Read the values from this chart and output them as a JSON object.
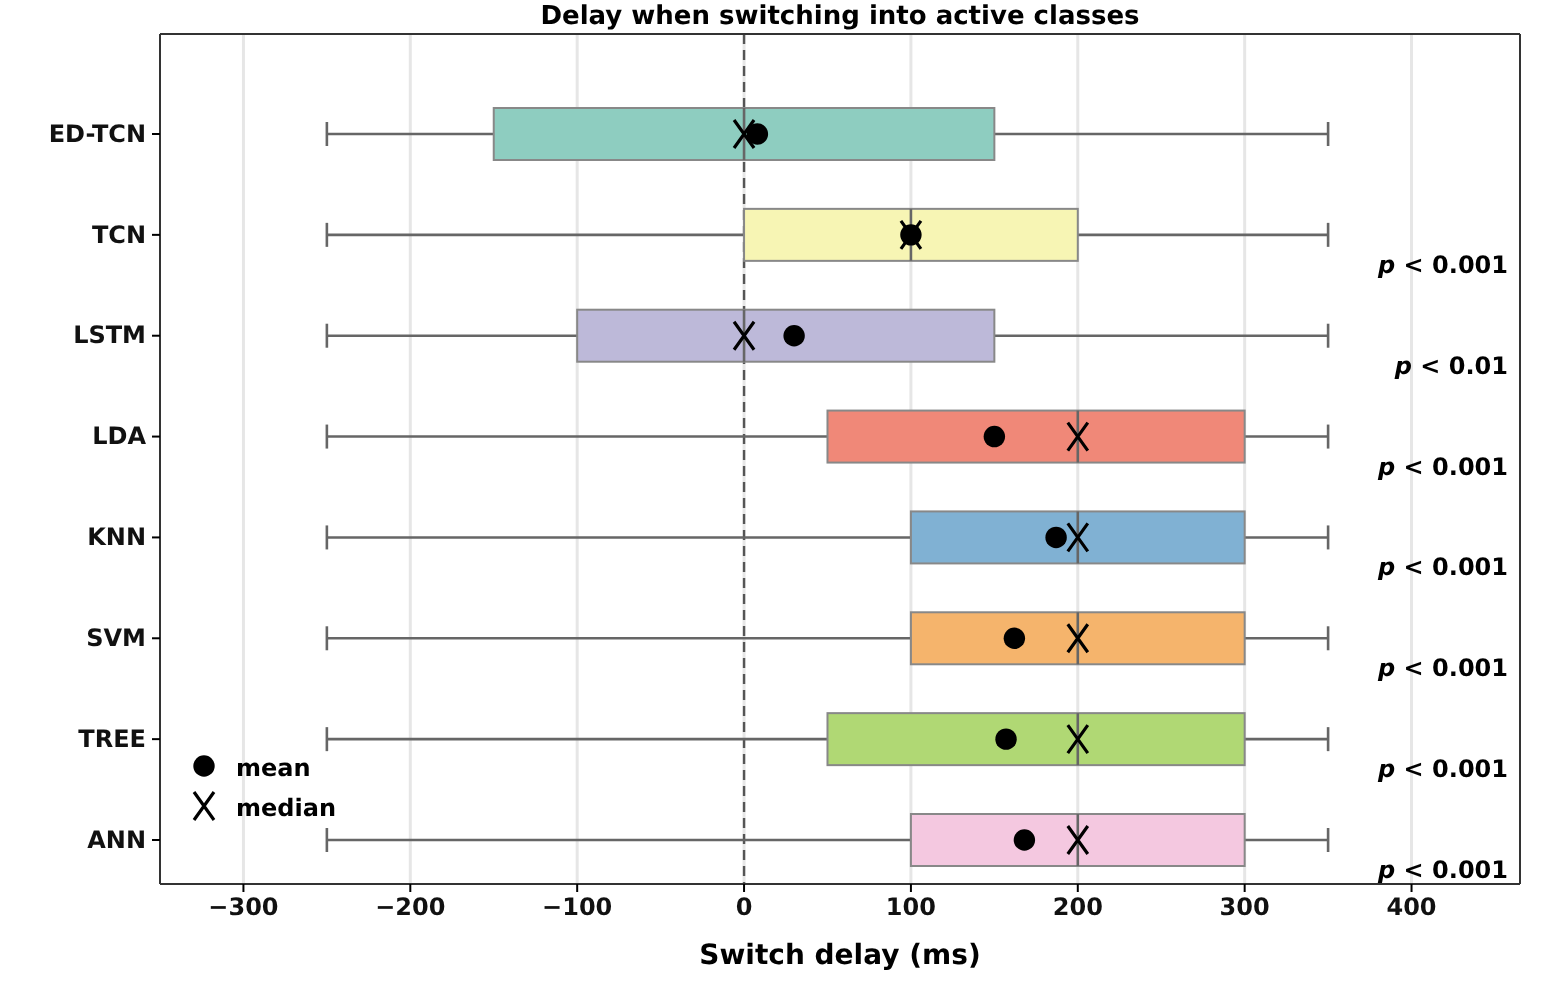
{
  "chart_data": {
    "type": "box",
    "orientation": "horizontal",
    "title": "Delay when switching into active classes",
    "xlabel": "Switch delay (ms)",
    "categories": [
      "ED-TCN",
      "TCN",
      "LSTM",
      "LDA",
      "KNN",
      "SVM",
      "TREE",
      "ANN"
    ],
    "colors": [
      "#8ecdc0",
      "#f7f5b4",
      "#bdb9d9",
      "#f08878",
      "#80b1d3",
      "#f5b46c",
      "#b0d874",
      "#f4c8e0"
    ],
    "boxes": [
      {
        "low": -250,
        "q1": -150,
        "median": 0,
        "q3": 150,
        "high": 350
      },
      {
        "low": -250,
        "q1": 0,
        "median": 100,
        "q3": 200,
        "high": 350
      },
      {
        "low": -250,
        "q1": -100,
        "median": 0,
        "q3": 150,
        "high": 350
      },
      {
        "low": -250,
        "q1": 50,
        "median": 200,
        "q3": 300,
        "high": 350
      },
      {
        "low": -250,
        "q1": 100,
        "median": 200,
        "q3": 300,
        "high": 350
      },
      {
        "low": -250,
        "q1": 100,
        "median": 200,
        "q3": 300,
        "high": 350
      },
      {
        "low": -250,
        "q1": 50,
        "median": 200,
        "q3": 300,
        "high": 350
      },
      {
        "low": -250,
        "q1": 100,
        "median": 200,
        "q3": 300,
        "high": 350
      }
    ],
    "series": [
      {
        "name": "mean",
        "type": "scatter",
        "marker": "circle",
        "color": "#000000",
        "values": [
          8,
          100,
          30,
          150,
          187,
          162,
          157,
          168
        ]
      },
      {
        "name": "median",
        "type": "scatter",
        "marker": "cross",
        "color": "#000000",
        "values": [
          0,
          100,
          0,
          200,
          200,
          200,
          200,
          200
        ]
      }
    ],
    "xlim": [
      -350,
      465
    ],
    "xticks": [
      -300,
      -200,
      -100,
      0,
      100,
      200,
      300,
      400
    ],
    "grid": "x",
    "legend": "bottom left",
    "ref_lines": [
      {
        "axis": "x",
        "value": 0,
        "line_style": "dashed",
        "color": "#555555"
      }
    ],
    "annotations": [
      "p < 0.001",
      "p < 0.01",
      "p < 0.001",
      "p < 0.001",
      "p < 0.001",
      "p < 0.001",
      "p < 0.001"
    ]
  }
}
